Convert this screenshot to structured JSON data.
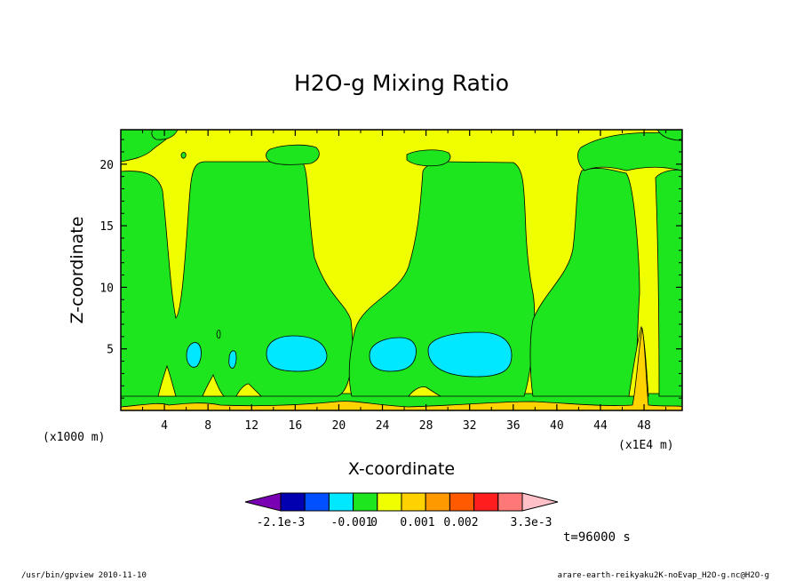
{
  "chart_data": {
    "type": "contour",
    "title": "H2O-g Mixing Ratio",
    "xlabel": "X-coordinate",
    "ylabel": "Z-coordinate",
    "x_unit_left": "(x1000 m)",
    "x_unit_right": "(x1E4 m)",
    "xlim": [
      0,
      51.5
    ],
    "ylim": [
      0,
      22.8
    ],
    "xticks": [
      "4",
      "8",
      "12",
      "16",
      "20",
      "24",
      "28",
      "32",
      "36",
      "40",
      "44",
      "48"
    ],
    "yticks": [
      "5",
      "10",
      "15",
      "20"
    ],
    "colorbar": {
      "colors": [
        "#7a00b4",
        "#0000b0",
        "#0050ff",
        "#00e8ff",
        "#1ee61e",
        "#f0ff00",
        "#ffd200",
        "#ff9900",
        "#ff5a00",
        "#ff1e1e",
        "#ff7878",
        "#ffc0c8"
      ],
      "labels": [
        "-2.1e-3",
        "-0.001",
        "0",
        "0.001",
        "0.002",
        "3.3e-3"
      ]
    },
    "level_colors": {
      "neg_strong": "#00e8ff",
      "neg": "#1ee61e",
      "zero": "#f0ff00",
      "pos": "#ffd200"
    },
    "time_label": "t=96000 s"
  },
  "footer": {
    "left": "/usr/bin/gpview  2010-11-10",
    "right": "arare-earth-reikyaku2K-noEvap_H2O-g.nc@H2O-g"
  }
}
